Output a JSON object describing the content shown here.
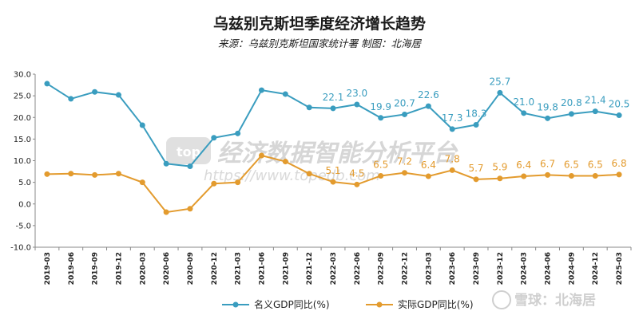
{
  "chart_data": {
    "type": "line",
    "title": "乌兹别克斯坦季度经济增长趋势",
    "subtitle": "来源：乌兹别克斯坦国家统计署 制图：北海居",
    "x": [
      "2019-03",
      "2019-06",
      "2019-09",
      "2019-12",
      "2020-03",
      "2020-06",
      "2020-09",
      "2020-12",
      "2021-03",
      "2021-06",
      "2021-09",
      "2021-12",
      "2022-03",
      "2022-06",
      "2022-09",
      "2022-12",
      "2023-03",
      "2023-06",
      "2023-09",
      "2023-12",
      "2024-03",
      "2024-06",
      "2024-09",
      "2024-12",
      "2025-03"
    ],
    "ylim": [
      -10,
      30
    ],
    "yticks": [
      "30.0",
      "25.0",
      "20.0",
      "15.0",
      "10.0",
      "5.0",
      "0.0",
      "-5.0",
      "-10.0"
    ],
    "grid": false,
    "legend_position": "bottom",
    "series": [
      {
        "name": "名义GDP同比(%)",
        "color": "#3a9dbf",
        "values": [
          27.8,
          24.3,
          25.9,
          25.2,
          18.2,
          9.3,
          8.7,
          15.3,
          16.3,
          26.3,
          25.4,
          22.3,
          22.1,
          23.0,
          19.9,
          20.7,
          22.6,
          17.3,
          18.3,
          25.7,
          21.0,
          19.8,
          20.8,
          21.4,
          20.5
        ],
        "labels": [
          "",
          "",
          "",
          "",
          "",
          "",
          "",
          "",
          "",
          "",
          "",
          "",
          "22.1",
          "23.0",
          "19.9",
          "20.7",
          "22.6",
          "17.3",
          "18.3",
          "25.7",
          "21.0",
          "19.8",
          "20.8",
          "21.4",
          "20.5"
        ]
      },
      {
        "name": "实际GDP同比(%)",
        "color": "#e39b2e",
        "values": [
          6.9,
          7.0,
          6.7,
          7.0,
          5.0,
          -1.9,
          -1.1,
          4.7,
          5.0,
          11.2,
          9.8,
          7.0,
          5.1,
          4.5,
          6.5,
          7.2,
          6.4,
          7.8,
          5.7,
          5.9,
          6.4,
          6.7,
          6.5,
          6.5,
          6.8
        ],
        "labels": [
          "",
          "",
          "",
          "",
          "",
          "",
          "",
          "",
          "",
          "",
          "",
          "",
          "5.1",
          "4.5",
          "6.5",
          "7.2",
          "6.4",
          "7.8",
          "5.7",
          "5.9",
          "6.4",
          "6.7",
          "6.5",
          "6.5",
          "6.8"
        ]
      }
    ]
  },
  "watermark": {
    "logo": "top",
    "text": "经济数据智能分析平台",
    "url": "https://www.topedb.com"
  },
  "footer_brand": "雪球：北海居"
}
